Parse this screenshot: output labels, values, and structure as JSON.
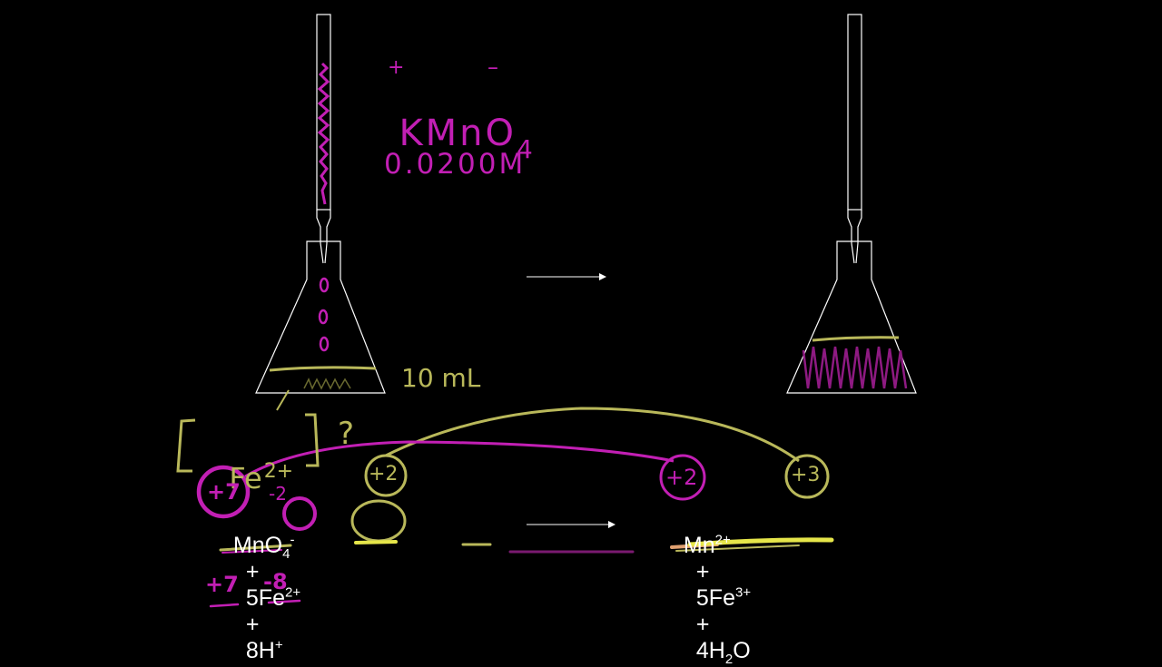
{
  "colors": {
    "background": "#000000",
    "glassware": "#ffffff",
    "permanganate_purple": "#c21fb4",
    "iron_yellow": "#b9b85a",
    "highlight_yellow": "#e6e64a",
    "highlight_orange": "#e0a070"
  },
  "titrant": {
    "formula_main": "KMnO",
    "formula_sub": "4",
    "cation_charge": "+",
    "anion_charge": "–",
    "concentration": "0.0200M"
  },
  "analyte": {
    "volume": "10 mL",
    "unknown_concentration": "[Fe",
    "unknown_charge": "2+",
    "unknown_close": "]",
    "question_mark": "?"
  },
  "equation": {
    "reactants": {
      "mno4_main": "MnO",
      "mno4_sub": "4",
      "mno4_charge": "-",
      "plus1": "+",
      "fe_main": "5Fe",
      "fe_charge": "2+",
      "plus2": "+",
      "h_main": "8H",
      "h_charge": "+"
    },
    "products": {
      "mn_main": "Mn",
      "mn_charge": "2+",
      "plus1": "+",
      "fe_main": "5Fe",
      "fe_charge": "3+",
      "plus2": "+",
      "water_pre": "4H",
      "water_sub": "2",
      "water_post": "O"
    }
  },
  "oxidation_states": {
    "mn_reactant": "+7",
    "oxygen": "-2",
    "fe_reactant": "+2",
    "mn_product": "+2",
    "fe_product": "+3",
    "sum_mn": "+7",
    "sum_o": "-8"
  }
}
